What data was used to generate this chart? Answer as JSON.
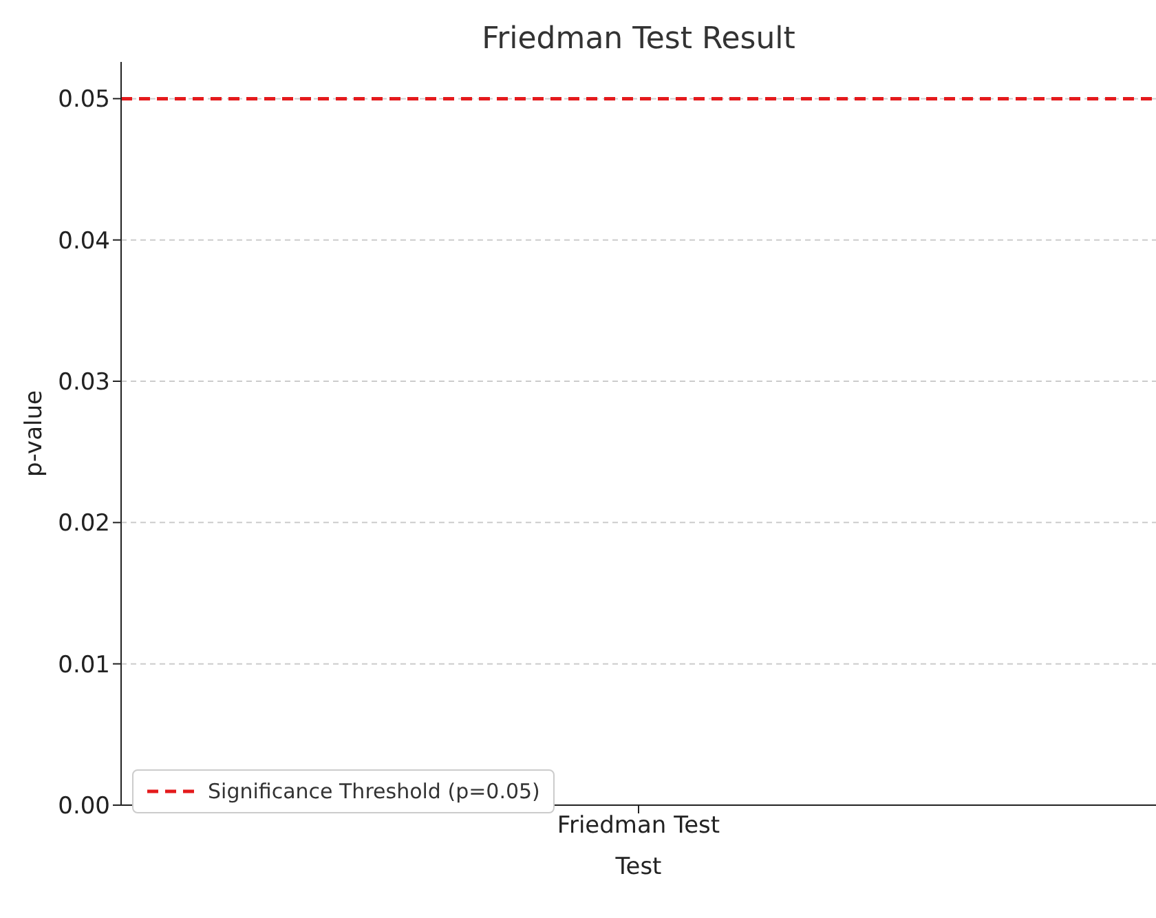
{
  "chart_data": {
    "type": "bar",
    "title": "Friedman Test Result",
    "xlabel": "Test",
    "ylabel": "p-value",
    "categories": [
      "Friedman Test"
    ],
    "values": [
      0
    ],
    "ylim": [
      0,
      0.0526
    ],
    "yticks": [
      {
        "value": 0,
        "label": "0.00"
      },
      {
        "value": 0.01,
        "label": "0.01"
      },
      {
        "value": 0.02,
        "label": "0.02"
      },
      {
        "value": 0.03,
        "label": "0.03"
      },
      {
        "value": 0.04,
        "label": "0.04"
      },
      {
        "value": 0.05,
        "label": "0.05"
      }
    ],
    "grid": "y",
    "ref_lines": [
      {
        "axis": "y",
        "value": 0.05,
        "label": "Significance Threshold (p=0.05)",
        "color": "#e41a1c",
        "line_style": "dashed"
      }
    ],
    "legend": "bottom left"
  }
}
